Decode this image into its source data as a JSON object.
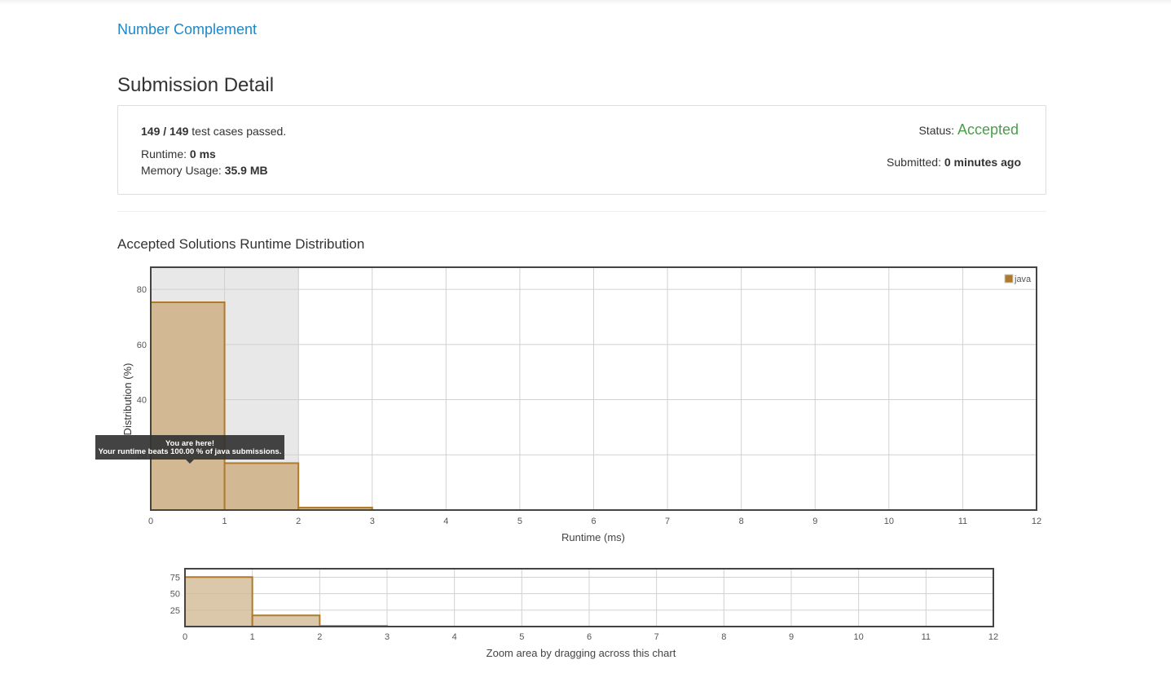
{
  "problem": {
    "title": "Number Complement"
  },
  "page": {
    "title": "Submission Detail"
  },
  "summary": {
    "passed": "149",
    "separator": " / ",
    "total": "149",
    "passed_suffix": " test cases passed.",
    "runtime_label": "Runtime: ",
    "runtime_value": "0 ms",
    "memory_label": "Memory Usage: ",
    "memory_value": "35.9 MB",
    "status_label": "Status: ",
    "status_value": "Accepted",
    "submitted_label": "Submitted: ",
    "submitted_value": "0 minutes ago"
  },
  "distribution": {
    "title": "Accepted Solutions Runtime Distribution",
    "tooltip_line1": "You are here!",
    "tooltip_line2": "Your runtime beats 100.00 % of java submissions.",
    "zoom_caption": "Zoom area by dragging across this chart",
    "highlight_range": [
      0,
      2
    ]
  },
  "colors": {
    "bar_fill": "#d2b994",
    "bar_stroke": "#b07a2a",
    "accepted": "#4a9d4a",
    "link": "#1e88c8"
  },
  "chart_data": [
    {
      "type": "bar",
      "title": "",
      "xlabel": "Runtime (ms)",
      "ylabel": "Distribution (%)",
      "xlim": [
        0,
        12
      ],
      "ylim": [
        0,
        88
      ],
      "xticks": [
        "0",
        "1",
        "2",
        "3",
        "4",
        "5",
        "6",
        "7",
        "8",
        "9",
        "10",
        "11",
        "12"
      ],
      "yticks": [
        "20",
        "40",
        "60",
        "80"
      ],
      "legend": {
        "position": "top-right",
        "entries": [
          "java"
        ]
      },
      "grid": true,
      "series": [
        {
          "name": "java",
          "bins": [
            [
              0,
              1
            ],
            [
              1,
              2
            ],
            [
              2,
              3
            ]
          ],
          "values": [
            75.3,
            17.0,
            0.9
          ]
        }
      ]
    },
    {
      "type": "bar",
      "title": "",
      "xlabel": "Zoom area by dragging across this chart",
      "ylabel": "",
      "xlim": [
        0,
        12
      ],
      "ylim": [
        0,
        88
      ],
      "xticks": [
        "0",
        "1",
        "2",
        "3",
        "4",
        "5",
        "6",
        "7",
        "8",
        "9",
        "10",
        "11",
        "12"
      ],
      "yticks": [
        "25",
        "50",
        "75"
      ],
      "grid": true,
      "series": [
        {
          "name": "java",
          "bins": [
            [
              0,
              1
            ],
            [
              1,
              2
            ],
            [
              2,
              3
            ]
          ],
          "values": [
            75.3,
            17.0,
            0.9
          ]
        }
      ]
    }
  ]
}
